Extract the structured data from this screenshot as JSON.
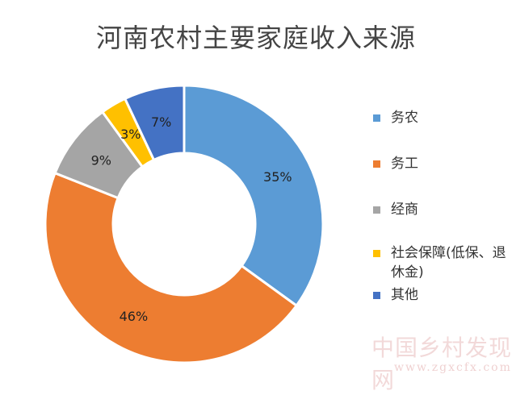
{
  "chart_data": {
    "type": "pie",
    "title": "河南农村主要家庭收入来源",
    "categories": [
      "务农",
      "务工",
      "经商",
      "社会保障(低保、退休金)",
      "其他"
    ],
    "values": [
      35,
      46,
      9,
      3,
      7
    ],
    "labels": [
      "35%",
      "46%",
      "9%",
      "3%",
      "7%"
    ],
    "colors": [
      "#5b9bd5",
      "#ed7d31",
      "#a5a5a5",
      "#ffc000",
      "#4472c4"
    ],
    "legend_position": "right"
  },
  "legend": [
    {
      "label": "务农",
      "color": "#5b9bd5"
    },
    {
      "label": "务工",
      "color": "#ed7d31"
    },
    {
      "label": "经商",
      "color": "#a5a5a5"
    },
    {
      "label": "社会保障(低保、退休金)",
      "color": "#ffc000"
    },
    {
      "label": "其他",
      "color": "#4472c4"
    }
  ],
  "watermark": {
    "text": "中国乡村发现网",
    "url": "www.zgxcfx.com"
  }
}
